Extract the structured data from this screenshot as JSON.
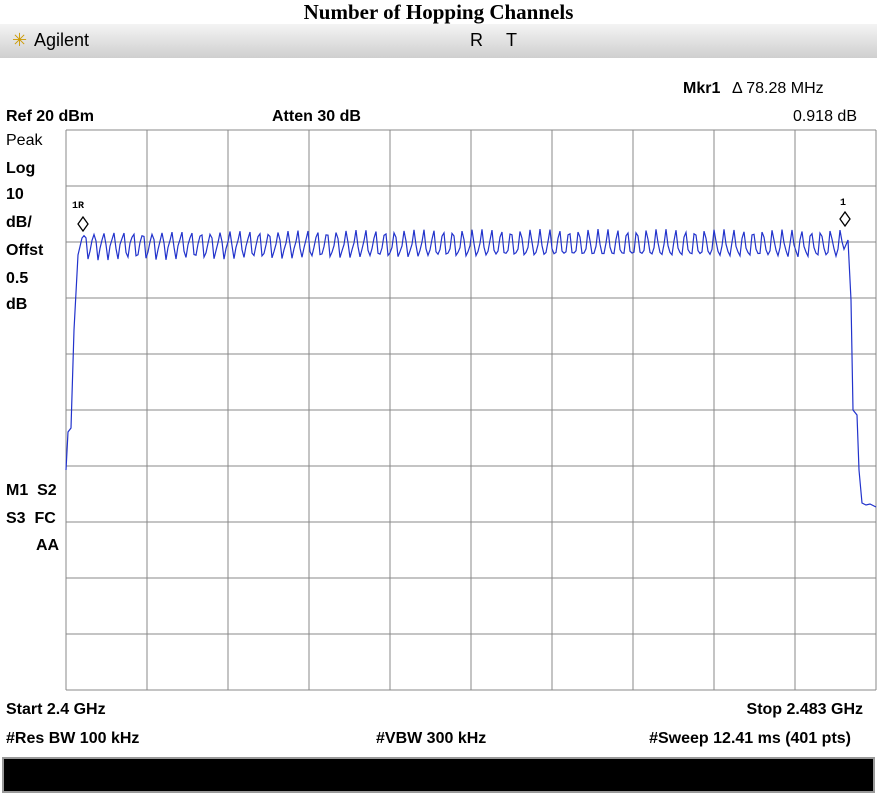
{
  "title": "Number of Hopping Channels",
  "header": {
    "brand": "Agilent",
    "status": [
      "R",
      "T"
    ]
  },
  "marker": {
    "label": "Mkr1",
    "delta": "Δ 78.28 MHz",
    "level": "0.918 dB"
  },
  "settings": {
    "ref": "Ref 20 dBm",
    "atten": "Atten 30 dB"
  },
  "side_labels": [
    "Peak",
    "Log",
    "10",
    "dB/",
    "Offst",
    "0.5",
    "dB"
  ],
  "side_status": [
    "M1  S2",
    "S3  FC",
    "AA"
  ],
  "trace_markers": [
    "1R",
    "1"
  ],
  "footer": {
    "start": "Start 2.4 GHz",
    "stop": "Stop 2.483 GHz",
    "rbw": "#Res BW 100 kHz",
    "vbw": "#VBW 300 kHz",
    "sweep": "#Sweep 12.41 ms (401 pts)"
  }
}
